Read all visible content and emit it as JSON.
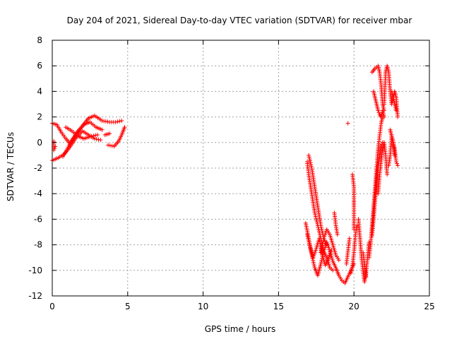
{
  "chart_data": {
    "type": "scatter",
    "title": "Day 204 of 2021, Sidereal Day-to-day VTEC variation (SDTVAR) for receiver mbar",
    "xlabel": "GPS time / hours",
    "ylabel": "SDTVAR / TECUs",
    "xlim": [
      0,
      25
    ],
    "ylim": [
      -12,
      8
    ],
    "xticks": [
      0,
      5,
      10,
      15,
      20,
      25
    ],
    "yticks": [
      -12,
      -10,
      -8,
      -6,
      -4,
      -2,
      0,
      2,
      4,
      6,
      8
    ],
    "xtick_labels": [
      "0",
      "5",
      "10",
      "15",
      "20",
      "25"
    ],
    "ytick_labels": [
      "-12",
      "-10",
      "-8",
      "-6",
      "-4",
      "-2",
      "0",
      "2",
      "4",
      "6",
      "8"
    ],
    "grid": true,
    "marker": "+",
    "color": "#ff0000",
    "series": [
      {
        "name": "SDTVAR",
        "segments": [
          [
            [
              0.0,
              1.5
            ],
            [
              0.3,
              1.4
            ],
            [
              0.6,
              0.8
            ],
            [
              0.9,
              0.3
            ],
            [
              1.2,
              -0.1
            ],
            [
              1.6,
              0.6
            ],
            [
              2.0,
              1.3
            ],
            [
              2.4,
              1.9
            ],
            [
              2.8,
              2.1
            ],
            [
              3.2,
              1.8
            ]
          ],
          [
            [
              0.0,
              -1.4
            ],
            [
              0.4,
              -1.2
            ],
            [
              0.8,
              -0.9
            ],
            [
              1.2,
              -0.3
            ],
            [
              1.6,
              0.4
            ],
            [
              2.0,
              0.9
            ],
            [
              2.4,
              0.6
            ],
            [
              2.8,
              0.3
            ],
            [
              3.2,
              0.2
            ]
          ],
          [
            [
              0.7,
              -1.1
            ],
            [
              1.0,
              -0.5
            ],
            [
              1.3,
              0.2
            ],
            [
              1.7,
              0.9
            ],
            [
              2.1,
              1.4
            ],
            [
              2.5,
              1.6
            ],
            [
              2.9,
              1.2
            ],
            [
              3.3,
              1.0
            ]
          ],
          [
            [
              0.9,
              1.2
            ],
            [
              1.3,
              0.9
            ],
            [
              1.7,
              0.5
            ],
            [
              2.1,
              0.3
            ],
            [
              2.6,
              0.5
            ],
            [
              3.0,
              0.6
            ]
          ],
          [
            [
              0.1,
              0.1
            ],
            [
              0.1,
              -0.6
            ],
            [
              0.2,
              -0.3
            ]
          ],
          [
            [
              3.3,
              1.7
            ],
            [
              3.8,
              1.6
            ],
            [
              4.2,
              1.6
            ],
            [
              4.6,
              1.7
            ]
          ],
          [
            [
              3.5,
              0.6
            ],
            [
              3.8,
              0.7
            ]
          ],
          [
            [
              3.7,
              -0.2
            ],
            [
              4.1,
              -0.3
            ],
            [
              4.4,
              0.1
            ],
            [
              4.6,
              0.6
            ],
            [
              4.8,
              1.2
            ]
          ],
          [
            [
              16.8,
              -6.3
            ],
            [
              17.0,
              -7.5
            ],
            [
              17.2,
              -8.8
            ],
            [
              17.4,
              -9.8
            ],
            [
              17.6,
              -10.4
            ],
            [
              17.8,
              -9.5
            ],
            [
              18.0,
              -8.5
            ],
            [
              18.2,
              -7.8
            ],
            [
              18.4,
              -8.5
            ],
            [
              18.6,
              -9.3
            ],
            [
              18.8,
              -9.8
            ],
            [
              19.0,
              -10.4
            ],
            [
              19.2,
              -10.8
            ],
            [
              19.4,
              -11.0
            ],
            [
              19.6,
              -10.5
            ],
            [
              19.8,
              -10.0
            ],
            [
              20.0,
              -9.5
            ]
          ],
          [
            [
              16.9,
              -1.5
            ],
            [
              17.0,
              -2.5
            ],
            [
              17.2,
              -4.0
            ],
            [
              17.4,
              -5.5
            ],
            [
              17.6,
              -6.5
            ],
            [
              17.8,
              -7.5
            ],
            [
              18.0,
              -8.5
            ],
            [
              18.2,
              -9.0
            ],
            [
              18.4,
              -9.8
            ],
            [
              18.6,
              -10.0
            ]
          ],
          [
            [
              17.0,
              -1.0
            ],
            [
              17.2,
              -2.0
            ],
            [
              17.4,
              -3.5
            ],
            [
              17.6,
              -5.0
            ],
            [
              17.8,
              -6.5
            ],
            [
              18.0,
              -7.5
            ],
            [
              18.2,
              -8.0
            ]
          ],
          [
            [
              17.8,
              -8.6
            ],
            [
              18.0,
              -7.5
            ],
            [
              18.2,
              -6.8
            ],
            [
              18.4,
              -7.2
            ],
            [
              18.6,
              -8.0
            ],
            [
              18.8,
              -8.8
            ],
            [
              19.0,
              -9.2
            ]
          ],
          [
            [
              16.9,
              -7.2
            ],
            [
              17.1,
              -8.2
            ],
            [
              17.3,
              -9.0
            ],
            [
              17.5,
              -8.3
            ],
            [
              17.7,
              -7.5
            ],
            [
              17.9,
              -8.8
            ],
            [
              18.1,
              -9.6
            ],
            [
              18.3,
              -9.1
            ],
            [
              18.5,
              -8.4
            ]
          ],
          [
            [
              18.7,
              -5.5
            ],
            [
              18.8,
              -6.5
            ],
            [
              18.9,
              -7.2
            ]
          ],
          [
            [
              19.5,
              -9.5
            ],
            [
              19.6,
              -8.5
            ],
            [
              19.7,
              -7.5
            ]
          ],
          [
            [
              19.8,
              -10.2
            ],
            [
              19.9,
              -9.6
            ],
            [
              20.0,
              -8.6
            ],
            [
              20.1,
              -7.2
            ],
            [
              20.2,
              -6.5
            ]
          ],
          [
            [
              19.9,
              -2.5
            ],
            [
              20.0,
              -3.5
            ],
            [
              20.0,
              -4.5
            ],
            [
              20.0,
              -5.0
            ],
            [
              20.0,
              -6.0
            ],
            [
              20.0,
              -6.8
            ]
          ],
          [
            [
              20.3,
              -6.0
            ],
            [
              20.4,
              -7.5
            ],
            [
              20.5,
              -9.0
            ],
            [
              20.6,
              -10.0
            ],
            [
              20.7,
              -10.9
            ],
            [
              20.8,
              -10.3
            ],
            [
              20.9,
              -9.0
            ],
            [
              21.0,
              -7.8
            ]
          ],
          [
            [
              20.6,
              -8.6
            ],
            [
              20.8,
              -10.5
            ]
          ],
          [
            [
              21.0,
              -9.0
            ],
            [
              21.1,
              -8.0
            ],
            [
              21.2,
              -6.5
            ],
            [
              21.3,
              -5.0
            ],
            [
              21.4,
              -3.5
            ],
            [
              21.5,
              -2.0
            ],
            [
              21.6,
              -0.5
            ],
            [
              21.7,
              0.5
            ],
            [
              21.8,
              1.5
            ],
            [
              21.9,
              2.0
            ]
          ],
          [
            [
              21.2,
              -7.3
            ],
            [
              21.3,
              -6.0
            ],
            [
              21.4,
              -4.5
            ],
            [
              21.5,
              -3.0
            ],
            [
              21.6,
              -1.8
            ],
            [
              21.7,
              -1.0
            ],
            [
              21.8,
              -0.3
            ],
            [
              21.9,
              0.0
            ]
          ],
          [
            [
              21.3,
              4.0
            ],
            [
              21.4,
              3.5
            ],
            [
              21.5,
              3.0
            ],
            [
              21.6,
              2.5
            ],
            [
              21.7,
              2.2
            ],
            [
              21.8,
              2.0
            ],
            [
              21.9,
              2.5
            ],
            [
              22.0,
              2.0
            ]
          ],
          [
            [
              21.2,
              5.5
            ],
            [
              21.4,
              5.8
            ],
            [
              21.6,
              6.0
            ],
            [
              21.7,
              5.5
            ],
            [
              21.8,
              4.5
            ],
            [
              21.9,
              3.0
            ],
            [
              22.0,
              2.5
            ]
          ],
          [
            [
              21.6,
              -4.0
            ],
            [
              21.7,
              -2.5
            ],
            [
              21.8,
              -1.5
            ],
            [
              21.9,
              -0.5
            ],
            [
              22.0,
              0.0
            ],
            [
              22.1,
              -1.0
            ],
            [
              22.2,
              -2.5
            ]
          ],
          [
            [
              22.0,
              3.0
            ],
            [
              22.1,
              5.5
            ],
            [
              22.2,
              6.0
            ],
            [
              22.3,
              5.5
            ],
            [
              22.4,
              4.0
            ],
            [
              22.5,
              3.0
            ],
            [
              22.6,
              3.5
            ],
            [
              22.7,
              3.0
            ],
            [
              22.8,
              2.5
            ]
          ],
          [
            [
              22.4,
              1.0
            ],
            [
              22.5,
              0.5
            ],
            [
              22.6,
              0.0
            ],
            [
              22.7,
              -0.5
            ],
            [
              22.8,
              -1.5
            ],
            [
              22.9,
              -1.8
            ]
          ],
          [
            [
              22.5,
              4.0
            ],
            [
              22.6,
              3.5
            ],
            [
              22.7,
              4.0
            ],
            [
              22.8,
              3.5
            ],
            [
              22.9,
              2.0
            ]
          ],
          [
            [
              22.3,
              -1.8
            ],
            [
              22.4,
              -1.0
            ],
            [
              22.5,
              0.5
            ],
            [
              22.6,
              0.0
            ],
            [
              22.7,
              -1.0
            ]
          ],
          [
            [
              19.6,
              1.5
            ]
          ]
        ]
      }
    ]
  }
}
